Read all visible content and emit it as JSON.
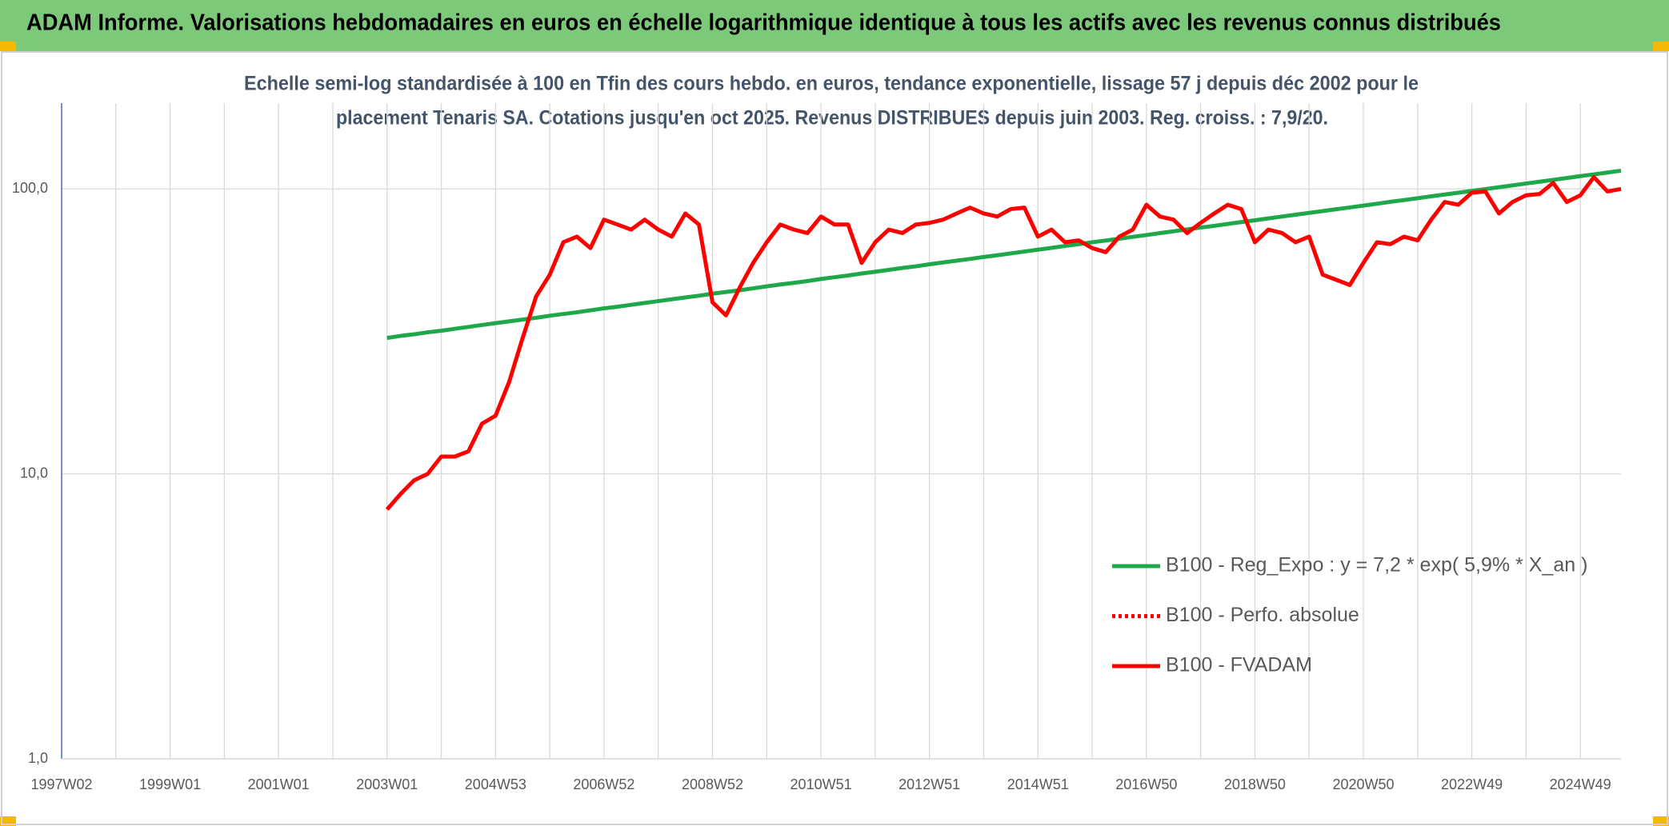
{
  "chart_data": {
    "type": "line",
    "title": "ADAM Informe. Valorisations hebdomadaires en euros en échelle logarithmique identique à tous les actifs avec les revenus connus distribués",
    "subtitle": [
      "Echelle semi-log standardisée à 100 en Tfin des cours hebdo. en euros, tendance exponentielle, lissage 57 j depuis déc 2002 pour le",
      "placement Tenaris SA. Cotations jusqu'en oct 2025. Revenus DISTRIBUES depuis juin 2003. Reg. croiss. : 7,9/20."
    ],
    "ylog": true,
    "ylim": [
      1,
      200
    ],
    "yticks": [
      {
        "value": 1,
        "label": "1,0"
      },
      {
        "value": 10,
        "label": "10,0"
      },
      {
        "value": 100,
        "label": "100,0"
      }
    ],
    "grid": true,
    "legend_position": "right",
    "categories": [
      "1997W02",
      null,
      null,
      null,
      null,
      null,
      null,
      null,
      "1999W01",
      null,
      null,
      null,
      null,
      null,
      null,
      null,
      "2001W01",
      null,
      null,
      null,
      null,
      null,
      null,
      null,
      "2003W01",
      null,
      null,
      null,
      null,
      null,
      null,
      null,
      "2004W53",
      null,
      null,
      null,
      null,
      null,
      null,
      null,
      "2006W52",
      null,
      null,
      null,
      null,
      null,
      null,
      null,
      "2008W52",
      null,
      null,
      null,
      null,
      null,
      null,
      null,
      "2010W51",
      null,
      null,
      null,
      null,
      null,
      null,
      null,
      "2012W51",
      null,
      null,
      null,
      null,
      null,
      null,
      null,
      "2014W51",
      null,
      null,
      null,
      null,
      null,
      null,
      null,
      "2016W50",
      null,
      null,
      null,
      null,
      null,
      null,
      null,
      "2018W50",
      null,
      null,
      null,
      null,
      null,
      null,
      null,
      "2020W50",
      null,
      null,
      null,
      null,
      null,
      null,
      null,
      "2022W49",
      null,
      null,
      null,
      null,
      null,
      null,
      null,
      "2024W49",
      null,
      null,
      null
    ],
    "series": [
      {
        "name": "B100 - Reg_Expo : y = 7,2 * exp( 5,9% *  X_an )",
        "color": "#1ea84a",
        "dash": "solid",
        "values": [
          null,
          null,
          null,
          null,
          null,
          null,
          null,
          null,
          null,
          null,
          null,
          null,
          null,
          null,
          null,
          null,
          null,
          null,
          null,
          null,
          null,
          null,
          null,
          null,
          30.0,
          30.5,
          30.9,
          31.4,
          31.8,
          32.3,
          32.8,
          33.3,
          33.8,
          34.3,
          34.8,
          35.3,
          35.9,
          36.4,
          36.9,
          37.5,
          38.1,
          38.6,
          39.2,
          39.8,
          40.4,
          41.0,
          41.6,
          42.2,
          42.9,
          43.5,
          44.1,
          44.8,
          45.5,
          46.2,
          46.8,
          47.5,
          48.3,
          49.0,
          49.7,
          50.5,
          51.2,
          52.0,
          52.8,
          53.5,
          54.4,
          55.2,
          56.0,
          56.8,
          57.7,
          58.5,
          59.4,
          60.3,
          61.2,
          62.1,
          63.1,
          64.0,
          65.0,
          65.9,
          66.9,
          67.9,
          68.9,
          70.0,
          71.0,
          72.1,
          73.2,
          74.2,
          75.4,
          76.5,
          77.6,
          78.8,
          80.0,
          81.2,
          82.4,
          83.6,
          84.9,
          86.1,
          87.4,
          88.7,
          90.1,
          91.4,
          92.8,
          94.2,
          95.6,
          97.0,
          98.4,
          99.9,
          101.4,
          102.9,
          104.5,
          106.0,
          107.6,
          109.2,
          110.9,
          112.5,
          114.2,
          115.9
        ]
      },
      {
        "name": "B100 - Perfo. absolue",
        "color": "#ff0000",
        "dash": "dotted",
        "values": [
          null,
          null,
          null,
          null,
          null,
          null,
          null,
          null,
          null,
          null,
          null,
          null,
          null,
          null,
          null,
          null,
          null,
          null,
          null,
          null,
          null,
          null,
          null,
          null,
          null,
          null,
          null,
          null,
          null,
          null,
          null,
          null,
          null,
          null,
          null,
          null,
          null,
          null,
          null,
          null,
          null,
          null,
          null,
          null,
          null,
          null,
          null,
          null,
          null,
          null,
          null,
          null,
          null,
          null,
          null,
          null,
          null,
          null,
          null,
          null,
          null,
          null,
          null,
          null,
          null,
          null,
          null,
          null,
          null,
          null,
          null,
          null,
          null,
          null,
          null,
          null,
          null,
          null,
          null,
          null,
          null,
          null,
          null,
          null,
          null,
          null,
          null,
          null,
          null,
          null,
          null,
          null,
          null,
          null,
          null,
          null,
          null,
          null,
          null,
          null,
          null,
          null,
          null,
          null,
          null,
          null,
          null,
          null,
          null,
          null,
          null,
          null,
          null,
          null,
          null,
          null
        ]
      },
      {
        "name": "B100 - FVADAM",
        "color": "#ff0000",
        "dash": "solid",
        "values": [
          null,
          null,
          null,
          null,
          null,
          null,
          null,
          null,
          null,
          null,
          null,
          null,
          null,
          null,
          null,
          null,
          null,
          null,
          null,
          null,
          null,
          null,
          null,
          null,
          7.5,
          8.5,
          9.5,
          10,
          11.5,
          11.5,
          12,
          15,
          16,
          21,
          30,
          42,
          50,
          65,
          68,
          62,
          78,
          75,
          72,
          78,
          72,
          68,
          82,
          75,
          40,
          36,
          45,
          55,
          65,
          75,
          72,
          70,
          80,
          75,
          75,
          55,
          65,
          72,
          70,
          75,
          76,
          78,
          82,
          86,
          82,
          80,
          85,
          86,
          68,
          72,
          65,
          66,
          62,
          60,
          68,
          72,
          88,
          80,
          78,
          70,
          76,
          82,
          88,
          85,
          65,
          72,
          70,
          65,
          68,
          50,
          48,
          46,
          55,
          65,
          64,
          68,
          66,
          78,
          90,
          88,
          97,
          98,
          82,
          90,
          95,
          96,
          105,
          90,
          95,
          110,
          98,
          100
        ]
      }
    ]
  }
}
